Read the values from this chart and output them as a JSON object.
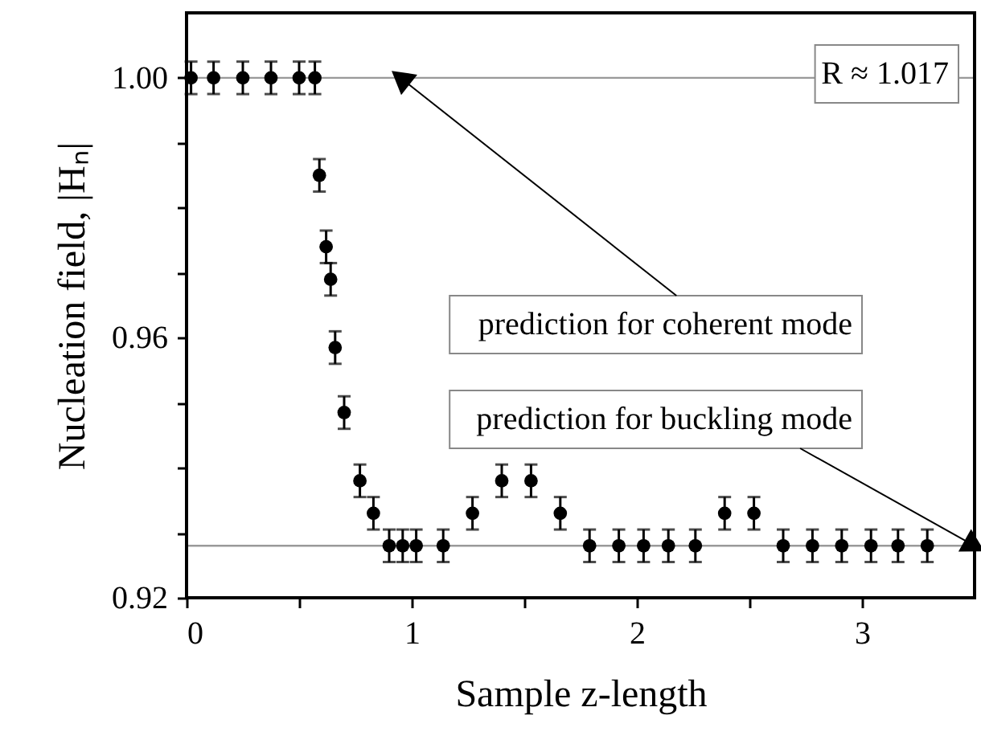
{
  "chart_data": {
    "type": "scatter",
    "xlabel": "Sample z-length",
    "ylabel": "Nucleation field, |Hₙ|",
    "x": [
      0.02,
      0.12,
      0.25,
      0.375,
      0.5,
      0.57,
      0.59,
      0.62,
      0.64,
      0.66,
      0.7,
      0.77,
      0.83,
      0.9,
      0.96,
      1.02,
      1.14,
      1.27,
      1.4,
      1.53,
      1.66,
      1.79,
      1.92,
      2.03,
      2.14,
      2.26,
      2.39,
      2.52,
      2.65,
      2.78,
      2.91,
      3.04,
      3.16,
      3.29
    ],
    "series": [
      {
        "color": "#000000",
        "values": [
          1.0,
          1.0,
          1.0,
          1.0,
          1.0,
          1.0,
          0.985,
          0.974,
          0.969,
          0.9585,
          0.9485,
          0.938,
          0.933,
          0.928,
          0.928,
          0.928,
          0.928,
          0.933,
          0.938,
          0.938,
          0.933,
          0.928,
          0.928,
          0.928,
          0.928,
          0.928,
          0.933,
          0.933,
          0.928,
          0.928,
          0.928,
          0.928,
          0.928,
          0.928
        ],
        "errors": [
          0.0025,
          0.0025,
          0.0025,
          0.0025,
          0.0025,
          0.0025,
          0.0025,
          0.0025,
          0.0025,
          0.0025,
          0.0025,
          0.0025,
          0.0025,
          0.0025,
          0.0025,
          0.0025,
          0.0025,
          0.0025,
          0.0025,
          0.0025,
          0.0025,
          0.0025,
          0.0025,
          0.0025,
          0.0025,
          0.0025,
          0.0025,
          0.0025,
          0.0025,
          0.0025,
          0.0025,
          0.0025,
          0.0025,
          0.0025
        ]
      }
    ],
    "marker": "circle",
    "xlim": [
      0,
      3.5
    ],
    "ylim": [
      0.92,
      1.01
    ],
    "xticks": [
      0,
      {
        "value": 0.5,
        "label": null
      },
      1,
      {
        "value": 1.5,
        "label": null
      },
      2,
      {
        "value": 2.5,
        "label": null
      },
      3
    ],
    "yticks": [
      {
        "value": 0.92,
        "label": "0.92"
      },
      {
        "value": 0.93,
        "label": null
      },
      {
        "value": 0.94,
        "label": null
      },
      {
        "value": 0.95,
        "label": null
      },
      {
        "value": 0.96,
        "label": "0.96"
      },
      {
        "value": 0.97,
        "label": null
      },
      {
        "value": 0.98,
        "label": null
      },
      {
        "value": 0.99,
        "label": null
      },
      {
        "value": 1.0,
        "label": "1.00"
      }
    ],
    "ref_lines": [
      {
        "axis": "y",
        "value": 1.0,
        "color": "#999999"
      },
      {
        "axis": "y",
        "value": 0.928,
        "color": "#999999"
      }
    ],
    "annotations": [
      "R ≈ 1.017",
      {
        "text": "prediction for coherent mode",
        "x": 0.95,
        "y": 1.0
      },
      {
        "text": "prediction for buckling mode",
        "x": 3.5,
        "y": 0.928
      }
    ],
    "grid": false
  }
}
